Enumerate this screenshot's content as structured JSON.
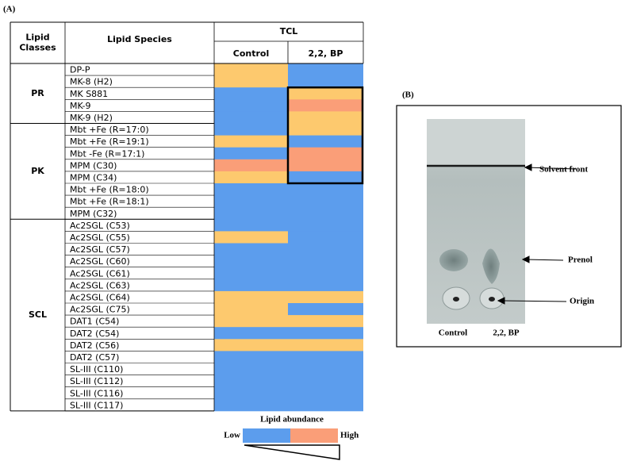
{
  "panel_a": {
    "label": "(A)",
    "header": {
      "lipid_classes": "Lipid\nClasses",
      "lipid_species": "Lipid Species",
      "tcl": "TCL",
      "control": "Control",
      "bp": "2,2, BP"
    },
    "groups": [
      {
        "name": "PR",
        "rows": [
          {
            "species": "DP-P",
            "control": "#fdc96e",
            "bp": "#5c9ded"
          },
          {
            "species": "MK-8 (H2)",
            "control": "#fdc96e",
            "bp": "#5c9ded"
          },
          {
            "species": "MK S881",
            "control": "#5c9ded",
            "bp": "#fdc96e"
          },
          {
            "species": "MK-9",
            "control": "#5c9ded",
            "bp": "#fa9e78"
          },
          {
            "species": "MK-9 (H2)",
            "control": "#5c9ded",
            "bp": "#fdc96e"
          }
        ]
      },
      {
        "name": "PK",
        "rows": [
          {
            "species": "Mbt +Fe (R=17:0)",
            "control": "#5c9ded",
            "bp": "#fdc96e"
          },
          {
            "species": "Mbt +Fe (R=19:1)",
            "control": "#fdc96e",
            "bp": "#5c9ded"
          },
          {
            "species": "Mbt -Fe (R=17:1)",
            "control": "#5c9ded",
            "bp": "#fa9e78"
          },
          {
            "species": "MPM (C30)",
            "control": "#fa9e78",
            "bp": "#fa9e78"
          },
          {
            "species": "MPM (C34)",
            "control": "#fdc96e",
            "bp": "#5c9ded"
          },
          {
            "species": "Mbt +Fe (R=18:0)",
            "control": "#5c9ded",
            "bp": "#5c9ded"
          },
          {
            "species": "Mbt +Fe (R=18:1)",
            "control": "#5c9ded",
            "bp": "#5c9ded"
          },
          {
            "species": "MPM (C32)",
            "control": "#5c9ded",
            "bp": "#5c9ded"
          }
        ]
      },
      {
        "name": "SCL",
        "rows": [
          {
            "species": "Ac2SGL (C53)",
            "control": "#5c9ded",
            "bp": "#5c9ded"
          },
          {
            "species": "Ac2SGL (C55)",
            "control": "#fdc96e",
            "bp": "#5c9ded"
          },
          {
            "species": "Ac2SGL (C57)",
            "control": "#5c9ded",
            "bp": "#5c9ded"
          },
          {
            "species": "Ac2SGL (C60)",
            "control": "#5c9ded",
            "bp": "#5c9ded"
          },
          {
            "species": "Ac2SGL (C61)",
            "control": "#5c9ded",
            "bp": "#5c9ded"
          },
          {
            "species": "Ac2SGL (C63)",
            "control": "#5c9ded",
            "bp": "#5c9ded"
          },
          {
            "species": "Ac2SGL (C64)",
            "control": "#fdc96e",
            "bp": "#fdc96e"
          },
          {
            "species": "Ac2SGL (C75)",
            "control": "#fdc96e",
            "bp": "#5c9ded"
          },
          {
            "species": "DAT1 (C54)",
            "control": "#fdc96e",
            "bp": "#fdc96e"
          },
          {
            "species": "DAT2 (C54)",
            "control": "#5c9ded",
            "bp": "#5c9ded"
          },
          {
            "species": "DAT2 (C56)",
            "control": "#fdc96e",
            "bp": "#fdc96e"
          },
          {
            "species": "DAT2 (C57)",
            "control": "#5c9ded",
            "bp": "#5c9ded"
          },
          {
            "species": "SL-III (C110)",
            "control": "#5c9ded",
            "bp": "#5c9ded"
          },
          {
            "species": "SL-III (C112)",
            "control": "#5c9ded",
            "bp": "#5c9ded"
          },
          {
            "species": "SL-III (C116)",
            "control": "#5c9ded",
            "bp": "#5c9ded"
          },
          {
            "species": "SL-III (C117)",
            "control": "#5c9ded",
            "bp": "#5c9ded"
          }
        ]
      }
    ],
    "legend": {
      "title": "Lipid abundance",
      "low": "Low",
      "high": "High",
      "low_color": "#5c9ded",
      "high_color": "#fa9e78"
    }
  },
  "panel_b": {
    "label": "(B)",
    "solvent_front": "Solvent front",
    "prenol": "Prenol",
    "origin": "Origin",
    "control": "Control",
    "bp": "2,2, BP"
  }
}
